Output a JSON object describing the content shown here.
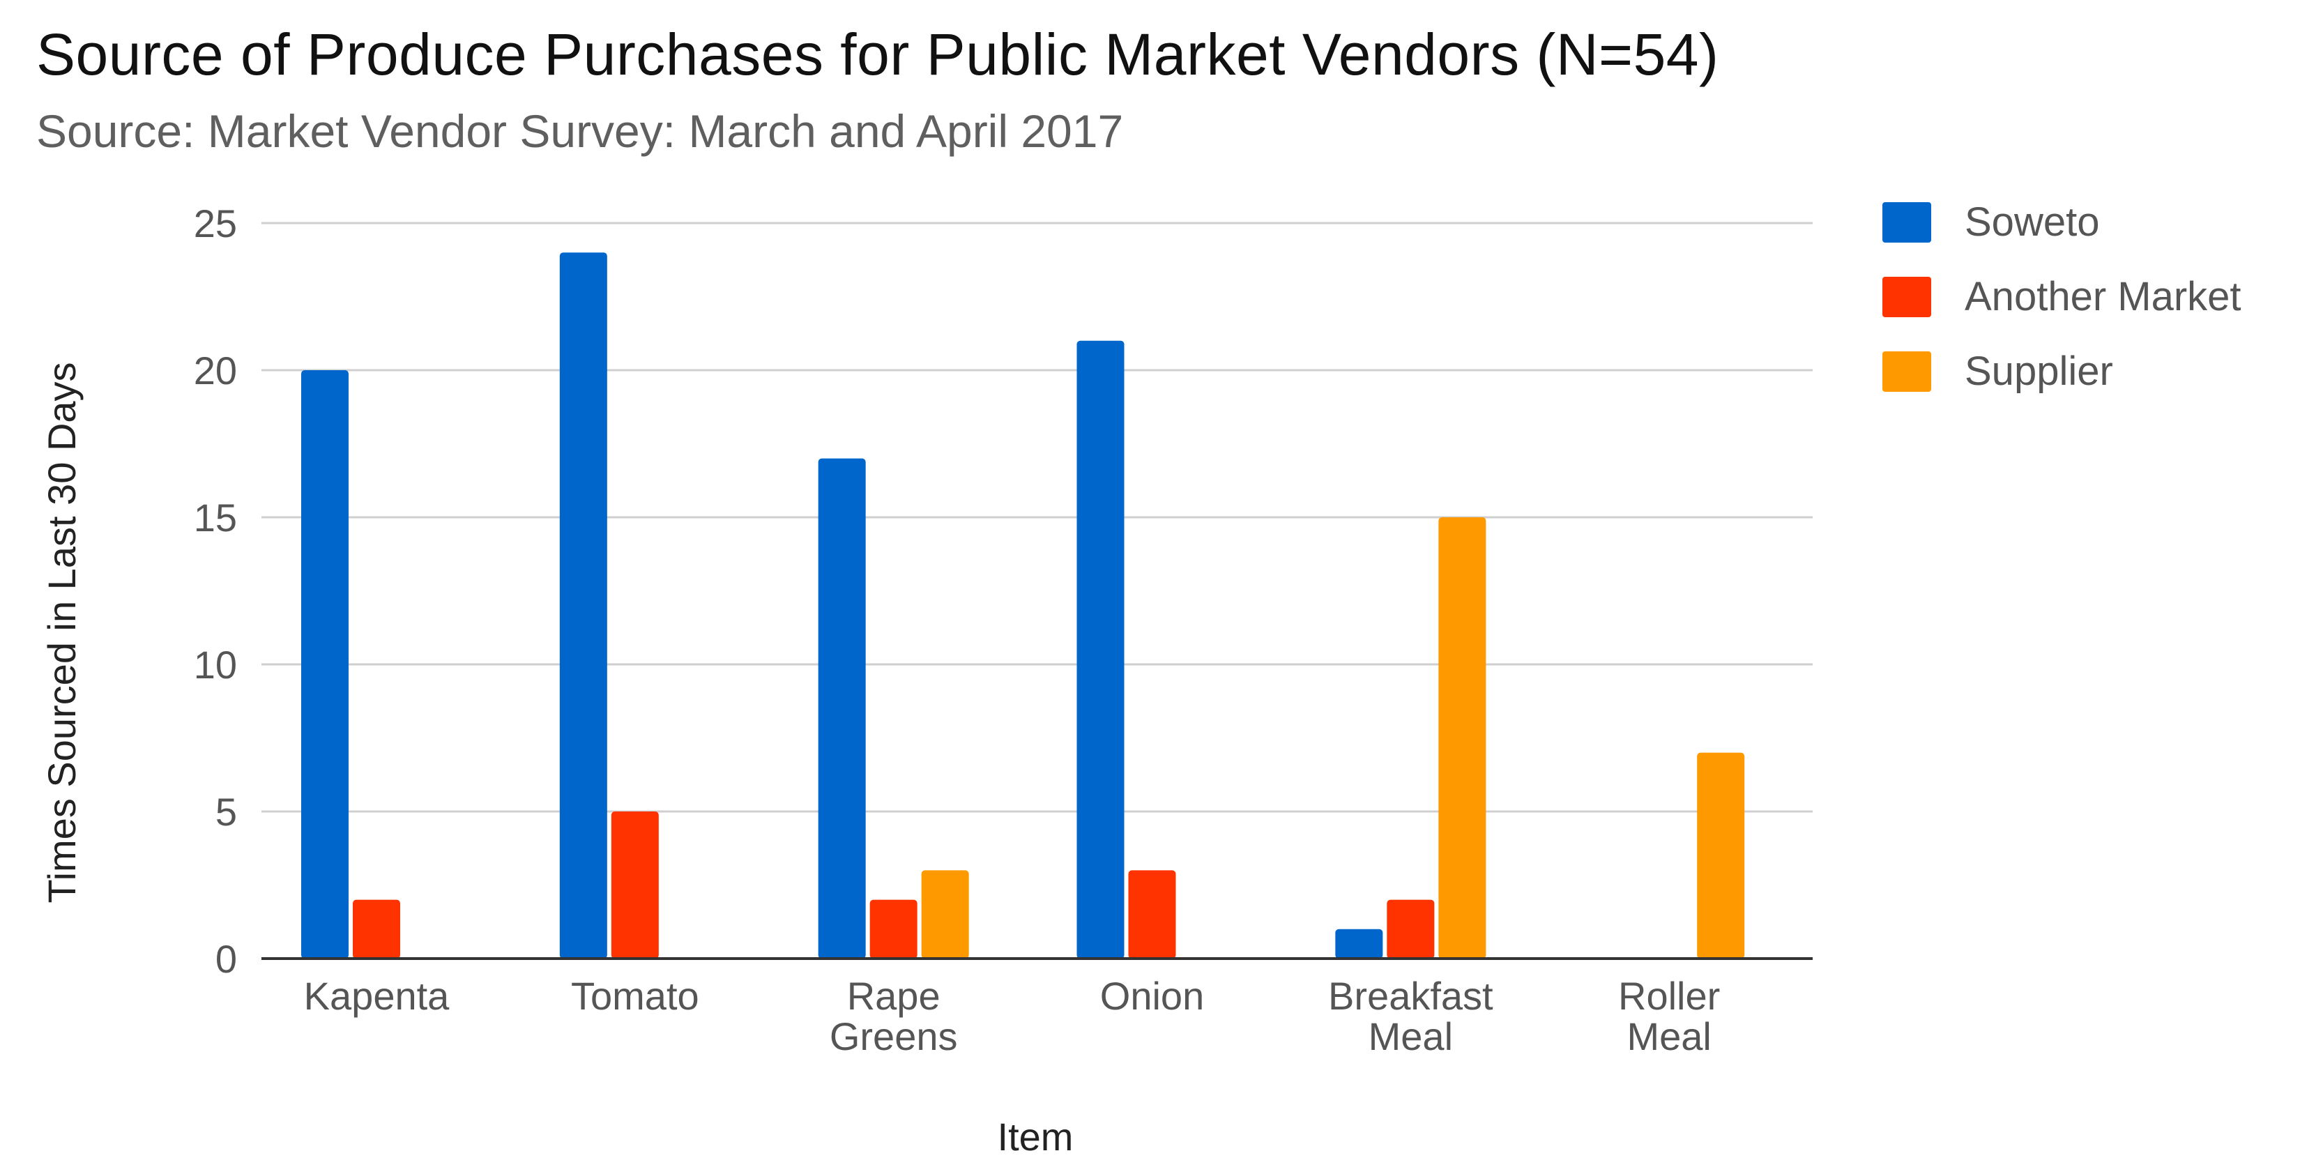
{
  "chart_data": {
    "type": "bar",
    "title": "Source of Produce Purchases for Public Market Vendors (N=54)",
    "subtitle": "Source: Market Vendor Survey: March and April 2017",
    "xlabel": "Item",
    "ylabel": "Times Sourced in Last 30 Days",
    "ylim": [
      0,
      25
    ],
    "yticks": [
      "0",
      "5",
      "10",
      "15",
      "20",
      "25"
    ],
    "grid": true,
    "legend_position": "right",
    "categories": [
      [
        "Kapenta"
      ],
      [
        "Tomato"
      ],
      [
        "Rape",
        "Greens"
      ],
      [
        "Onion"
      ],
      [
        "Breakfast",
        "Meal"
      ],
      [
        "Roller",
        "Meal"
      ]
    ],
    "series": [
      {
        "name": "Soweto",
        "color": "#0066cc",
        "values": [
          20,
          24,
          17,
          21,
          1,
          0
        ]
      },
      {
        "name": "Another Market",
        "color": "#ff3300",
        "values": [
          2,
          5,
          2,
          3,
          2,
          0
        ]
      },
      {
        "name": "Supplier",
        "color": "#ff9900",
        "values": [
          0,
          0,
          3,
          0,
          15,
          7
        ]
      }
    ]
  }
}
